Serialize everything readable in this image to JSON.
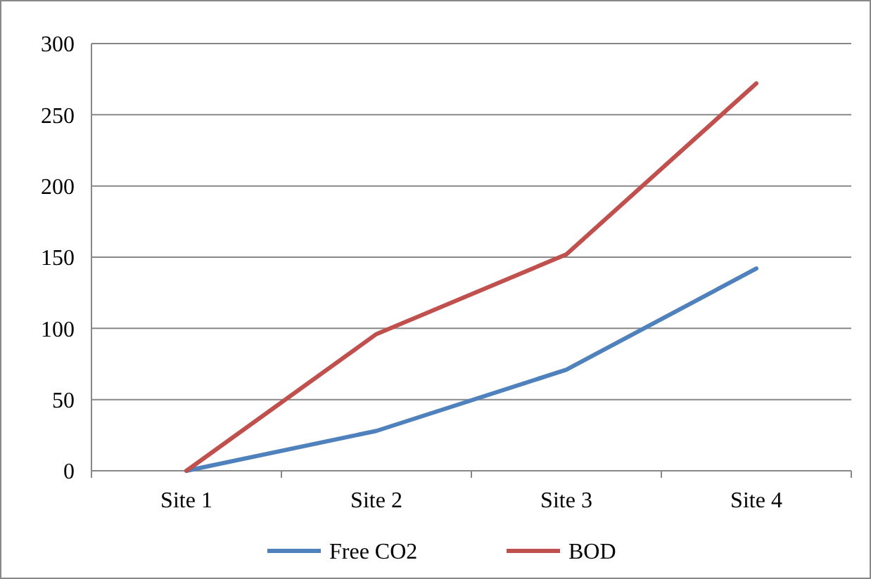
{
  "chart_data": {
    "type": "line",
    "categories": [
      "Site 1",
      "Site 2",
      "Site 3",
      "Site 4"
    ],
    "series": [
      {
        "name": "Free CO2",
        "color": "#4f81bd",
        "values": [
          0,
          28,
          71,
          142
        ]
      },
      {
        "name": "BOD",
        "color": "#c0504d",
        "values": [
          0,
          96,
          152,
          272
        ]
      }
    ],
    "ylim": [
      0,
      300
    ],
    "yticks": [
      0,
      50,
      100,
      150,
      200,
      250,
      300
    ],
    "grid": "y",
    "legend": "bottom",
    "marker": "none",
    "line_style": "solid"
  }
}
